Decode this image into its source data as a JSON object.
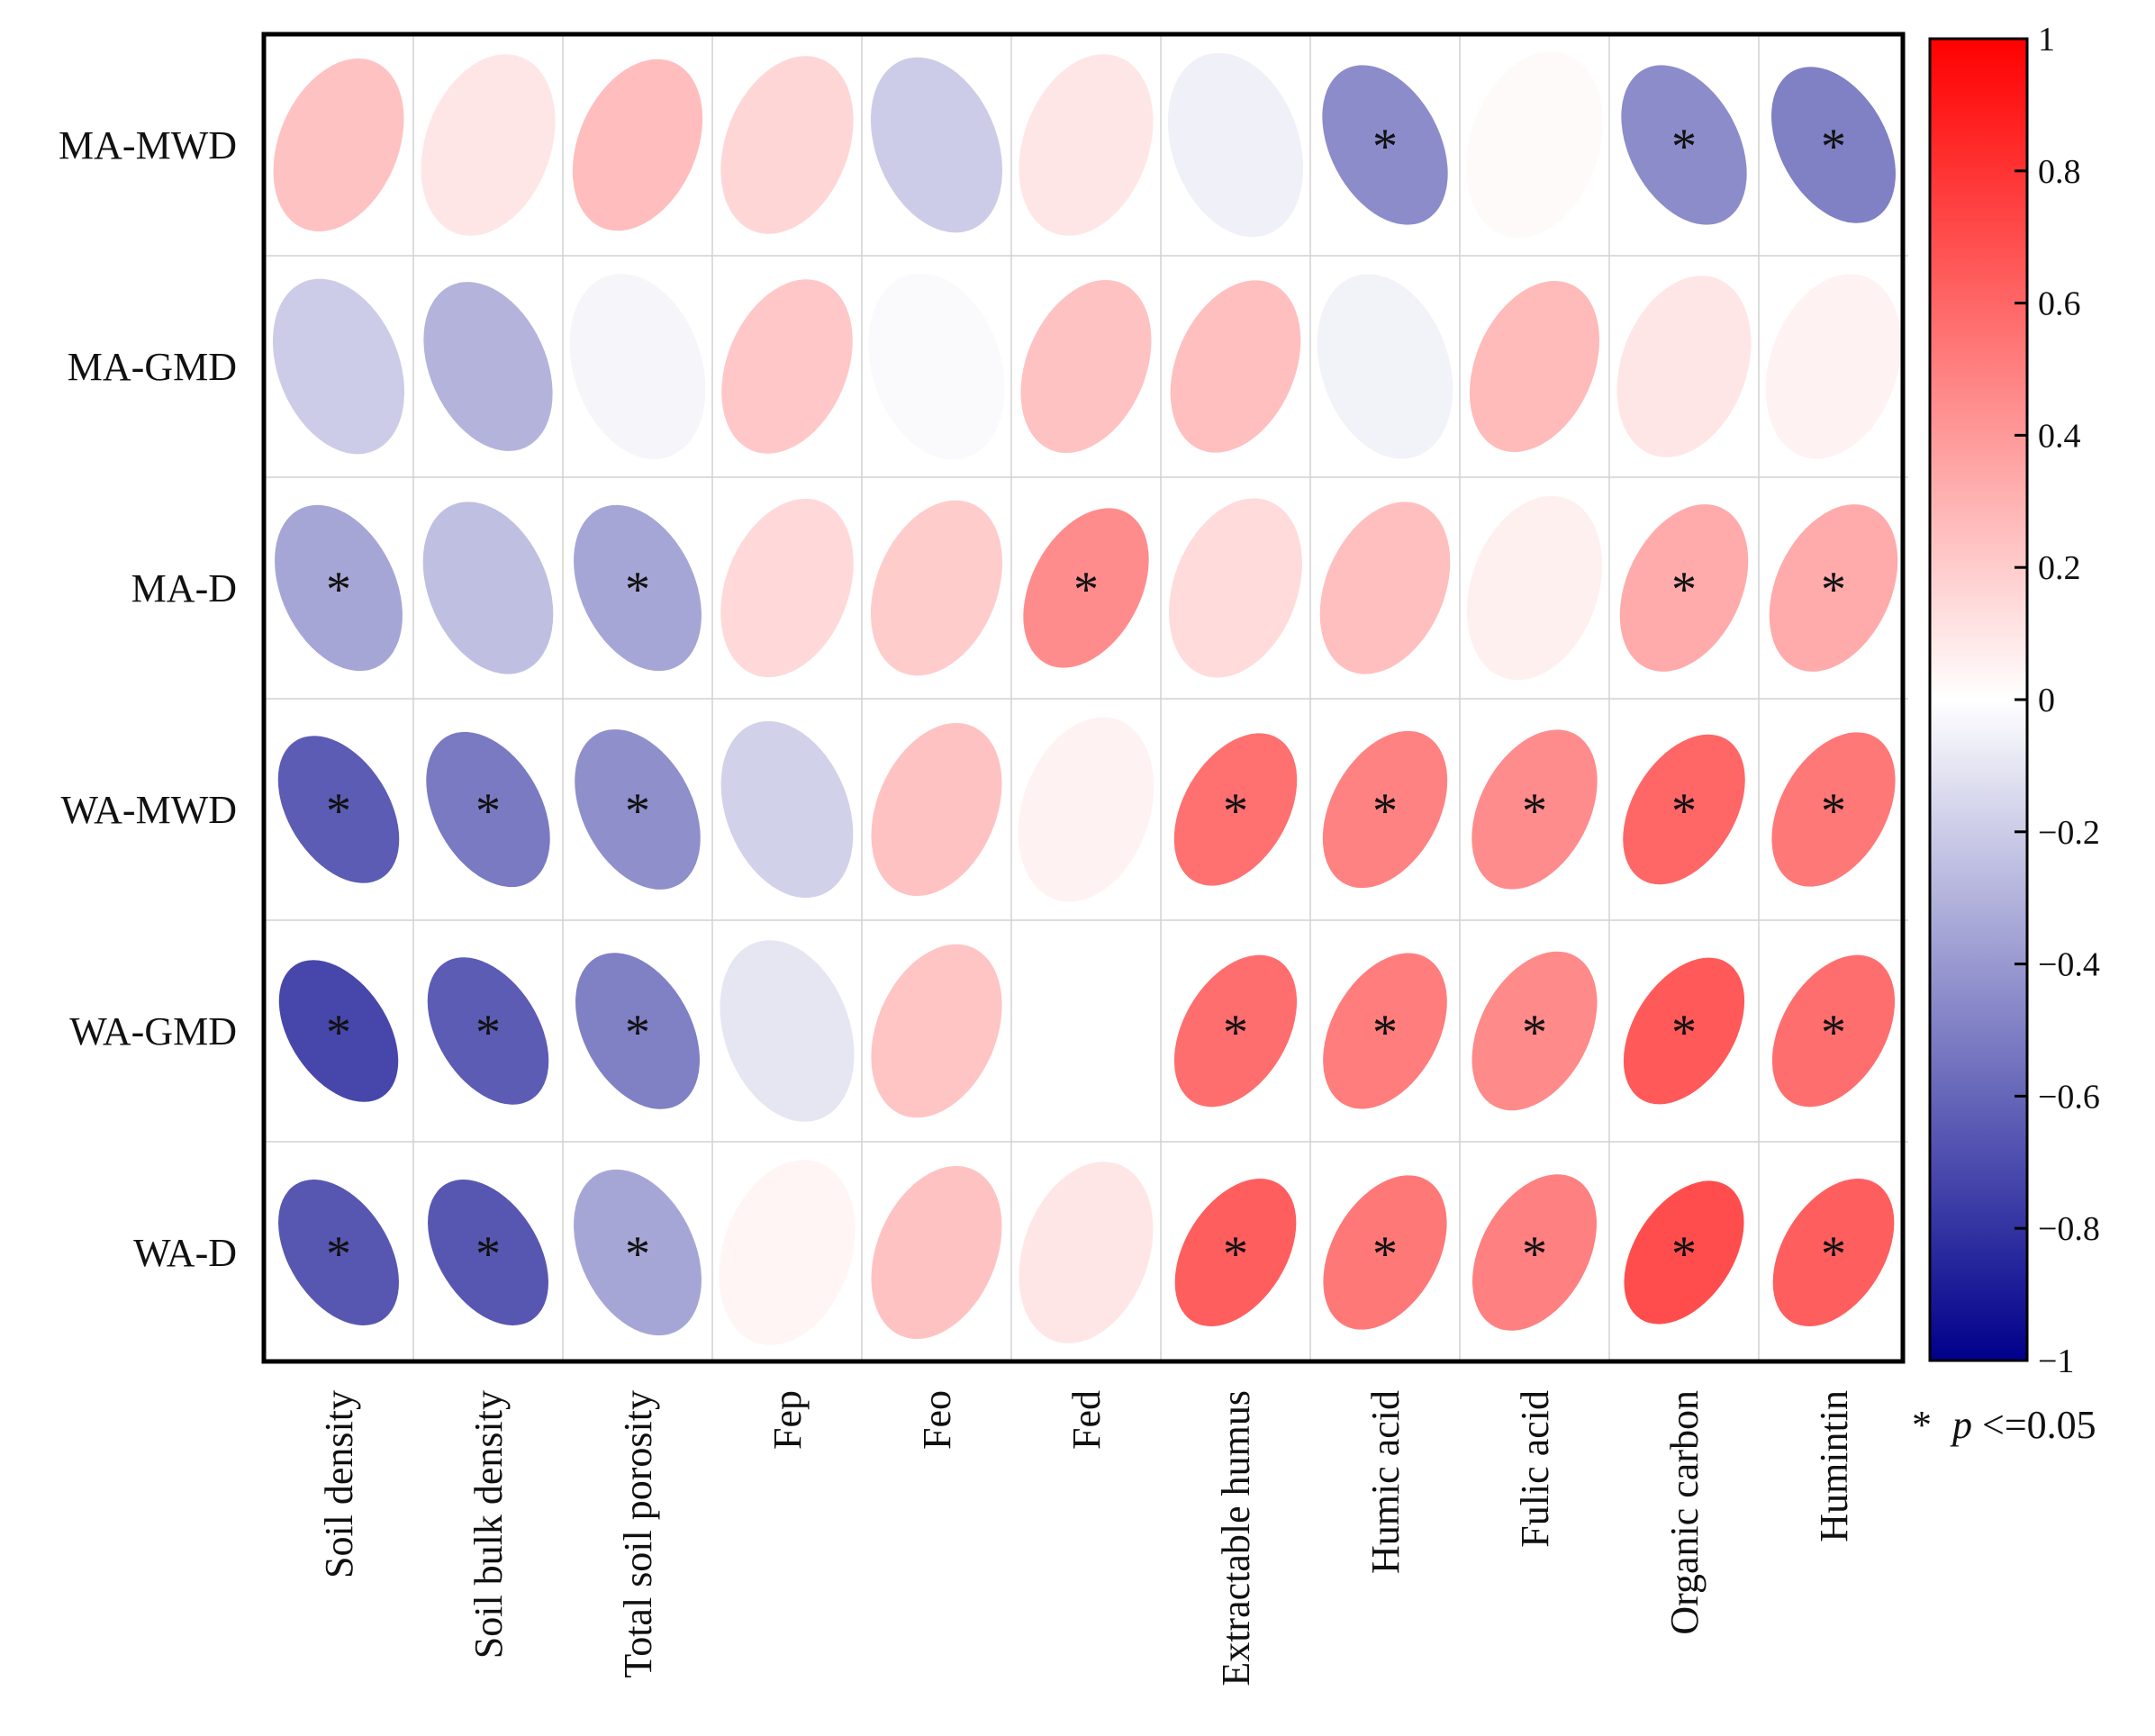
{
  "chart_data": {
    "type": "heatmap",
    "subtype": "correlation-ellipse",
    "rows": [
      "MA-MWD",
      "MA-GMD",
      "MA-D",
      "WA-MWD",
      "WA-GMD",
      "WA-D"
    ],
    "columns": [
      "Soil density",
      "Soil bulk density",
      "Total soil porosity",
      "Fep",
      "Feo",
      "Fed",
      "Extractable humus",
      "Humic acid",
      "Fulic acid",
      "Organic carbon",
      "Humintin"
    ],
    "values": [
      [
        0.24,
        0.1,
        0.26,
        0.16,
        -0.2,
        0.1,
        -0.06,
        -0.45,
        0.02,
        -0.45,
        -0.5
      ],
      [
        -0.2,
        -0.3,
        -0.04,
        0.22,
        -0.02,
        0.24,
        0.25,
        -0.05,
        0.27,
        0.1,
        0.05
      ],
      [
        -0.35,
        -0.25,
        -0.35,
        0.15,
        0.2,
        0.45,
        0.14,
        0.25,
        0.06,
        0.33,
        0.33
      ],
      [
        -0.64,
        -0.52,
        -0.44,
        -0.18,
        0.24,
        0.05,
        0.56,
        0.49,
        0.45,
        0.6,
        0.53
      ],
      [
        -0.72,
        -0.64,
        -0.5,
        -0.1,
        0.23,
        0.0,
        0.57,
        0.51,
        0.46,
        0.65,
        0.57
      ],
      [
        -0.66,
        -0.66,
        -0.35,
        0.04,
        0.24,
        0.1,
        0.63,
        0.53,
        0.5,
        0.7,
        0.63
      ]
    ],
    "significant": [
      [
        false,
        false,
        false,
        false,
        false,
        false,
        false,
        true,
        false,
        true,
        true
      ],
      [
        false,
        false,
        false,
        false,
        false,
        false,
        false,
        false,
        false,
        false,
        false
      ],
      [
        true,
        false,
        true,
        false,
        false,
        true,
        false,
        false,
        false,
        true,
        true
      ],
      [
        true,
        true,
        true,
        false,
        false,
        false,
        true,
        true,
        true,
        true,
        true
      ],
      [
        true,
        true,
        true,
        false,
        false,
        false,
        true,
        true,
        true,
        true,
        true
      ],
      [
        true,
        true,
        true,
        false,
        false,
        false,
        true,
        true,
        true,
        true,
        true
      ]
    ],
    "significance_marker": "*",
    "significance_note": {
      "marker": "*",
      "symbol": "p",
      "text": "<=0.05"
    },
    "colorbar": {
      "range": [
        -1,
        1
      ],
      "ticks": [
        "1",
        "0.8",
        "0.6",
        "0.4",
        "0.2",
        "0",
        "−0.2",
        "−0.4",
        "−0.6",
        "−0.8",
        "−1"
      ],
      "colors": {
        "negative": "#00008b",
        "mid": "#ffffff",
        "positive": "#ff0000"
      }
    }
  }
}
